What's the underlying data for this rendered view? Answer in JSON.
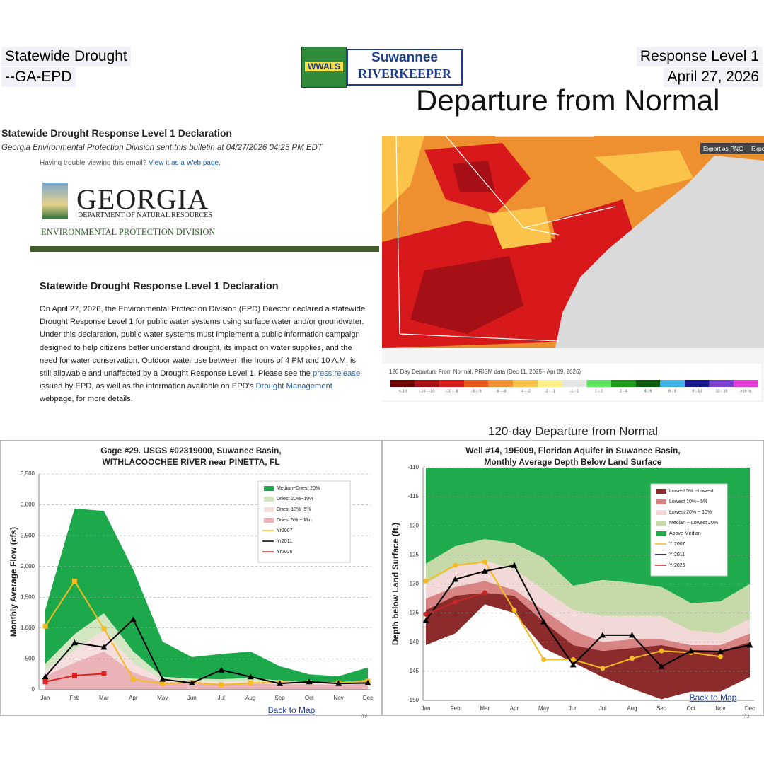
{
  "header": {
    "left": [
      "Statewide Drought",
      "--GA-EPD"
    ],
    "right": [
      "Response Level 1",
      "April 27, 2026"
    ],
    "headline": "Departure from Normal",
    "logo": {
      "badge": "WWALS",
      "name": "Suwannee",
      "sub": "RIVERKEEPER"
    }
  },
  "email": {
    "title": "Statewide Drought Response Level 1 Declaration",
    "sender": "Georgia Environmental Protection Division sent this bulletin at 04/27/2026 04:25 PM EDT",
    "trouble": "Having trouble viewing this email?",
    "web_link": "View it as a Web page.",
    "org": {
      "name": "GEORGIA",
      "dept": "DEPARTMENT OF NATURAL RESOURCES",
      "division": "ENVIRONMENTAL PROTECTION DIVISION"
    },
    "heading": "Statewide Drought Response Level 1 Declaration",
    "body": [
      "On April 27, 2026, the Environmental Protection Division (EPD) Director declared a statewide Drought Response Level 1 for public water systems using surface water and/or groundwater.  Under this declaration, public water systems must implement a public information campaign designed to help citizens better understand drought, its impact on water supplies, and the need for water conservation.  Outdoor water use between the hours of 4 PM and 10 A.M. is still allowable and unaffected by a Drought Response Level 1. Please see the",
      "press release",
      "issued by EPD, as well as the information available on EPD's",
      "Drought Management",
      "webpage, for more details."
    ]
  },
  "map": {
    "buttons": [
      "Export as PNG",
      "Export"
    ],
    "legend_title": "120 Day Departure From Normal, PRISM data (Dec 11, 2025 - Apr 09, 2026)",
    "legend": [
      {
        "label": "<-16",
        "color": "#6e0000"
      },
      {
        "label": "-16 - -10",
        "color": "#a50f15"
      },
      {
        "label": "-10 - -8",
        "color": "#d7191c"
      },
      {
        "label": "-8 - -6",
        "color": "#ea5a1f"
      },
      {
        "label": "-6 - -4",
        "color": "#f39234"
      },
      {
        "label": "-4 - -2",
        "color": "#fbc34a"
      },
      {
        "label": "-2 - -1",
        "color": "#fdf08a"
      },
      {
        "label": "-1 - 1",
        "color": "#e4e4e4"
      },
      {
        "label": "1 - 2",
        "color": "#5ee35e"
      },
      {
        "label": "2 - 4",
        "color": "#1c9a1c"
      },
      {
        "label": "4 - 6",
        "color": "#0c5a0c"
      },
      {
        "label": "6 - 8",
        "color": "#3fb4e4"
      },
      {
        "label": "8 - 10",
        "color": "#15158c"
      },
      {
        "label": "10 - 16",
        "color": "#7b3fd1"
      },
      {
        "label": ">16 in.",
        "color": "#e43fd6"
      }
    ],
    "caption": "120-day Departure from Normal"
  },
  "chart_data": [
    {
      "type": "line",
      "title": "Gage #29. USGS #02319000, Suwanee Basin,",
      "subtitle": "WITHLACOOCHEE RIVER near PINETTA, FL",
      "y_label": "Monthly Average Flow (cfs)",
      "categories": [
        "Jan",
        "Feb",
        "Mar",
        "Apr",
        "May",
        "Jun",
        "Jul",
        "Aug",
        "Sep",
        "Oct",
        "Nov",
        "Dec"
      ],
      "ylim": [
        0,
        3500
      ],
      "yticks": [
        0,
        500,
        {
          "value": 1000,
          "label": "1,000"
        },
        {
          "value": 1500,
          "label": "1,500"
        },
        {
          "value": 2000,
          "label": "2,000"
        },
        {
          "value": 2500,
          "label": "2,500"
        },
        {
          "value": 3000,
          "label": "3,000"
        },
        {
          "value": 3500,
          "label": "3,500"
        }
      ],
      "grid": true,
      "band_edge": "upper",
      "bands": [
        {
          "name": "Median~Driest 20%",
          "color": "#1ea84c",
          "values": [
            1300,
            2940,
            2900,
            1950,
            780,
            530,
            580,
            620,
            380,
            250,
            220,
            360
          ]
        },
        {
          "name": "Driest 20%~10%",
          "color": "#d3e6c2",
          "values": [
            420,
            900,
            1240,
            620,
            210,
            180,
            170,
            190,
            150,
            130,
            120,
            160
          ]
        },
        {
          "name": "Driest 10%~5%",
          "color": "#f5dede",
          "values": [
            320,
            640,
            960,
            430,
            160,
            140,
            130,
            140,
            120,
            110,
            100,
            130
          ]
        },
        {
          "name": "Driest 5% ~ Min",
          "color": "#e9b3b8",
          "values": [
            220,
            440,
            620,
            280,
            120,
            110,
            100,
            110,
            90,
            90,
            80,
            100
          ]
        }
      ],
      "series": [
        {
          "name": "Yr2007",
          "color": "#f4bb22",
          "marker": "square",
          "values": [
            1030,
            1760,
            990,
            170,
            100,
            120,
            80,
            110,
            120,
            120,
            110,
            140
          ]
        },
        {
          "name": "Yr2011",
          "color": "#000000",
          "marker": "triangle",
          "values": [
            210,
            760,
            690,
            1140,
            170,
            110,
            320,
            210,
            100,
            130,
            100,
            110
          ]
        },
        {
          "name": "Yr2026",
          "color": "#e02020",
          "marker": "square",
          "values": [
            130,
            230,
            260,
            null,
            null,
            null,
            null,
            null,
            null,
            null,
            null,
            null
          ]
        }
      ],
      "link": "Back to Map",
      "page": "49"
    },
    {
      "type": "line",
      "title": "Well #14, 19E009, Floridan Aquifer in Suwanee Basin,",
      "subtitle": "Monthly Average Depth Below  Land Surface",
      "y_label": "Depth below Land Surface (ft.)",
      "categories": [
        "Jan",
        "Feb",
        "Mar",
        "Apr",
        "May",
        "Jun",
        "Jul",
        "Aug",
        "Sep",
        "Oct",
        "Nov",
        "Dec"
      ],
      "ylim": [
        -150,
        -110
      ],
      "yticks": [
        -150,
        -145,
        -140,
        -135,
        -130,
        -125,
        -120,
        -115,
        -110
      ],
      "grid": true,
      "band_edge": "lower",
      "bands": [
        {
          "name": "Lowest 5% ~Lowest",
          "color": "#8c2b2b",
          "values": [
            -140.5,
            -138.5,
            -133.5,
            -135,
            -141,
            -143.5,
            -146,
            -148,
            -149.8,
            -148.5,
            -148.5,
            -146
          ]
        },
        {
          "name": "Lowest 10%~ 5%",
          "color": "#d98484",
          "values": [
            -134.5,
            -132,
            -131.5,
            -132,
            -136.5,
            -140.5,
            -141.5,
            -141,
            -140.5,
            -141.5,
            -141.5,
            -140
          ]
        },
        {
          "name": "Lowest 20% ~ 10%",
          "color": "#f3d8d8",
          "values": [
            -132.5,
            -130.5,
            -129.5,
            -131,
            -134.5,
            -138,
            -140,
            -139.5,
            -139.5,
            -140.5,
            -140.5,
            -138.5
          ]
        },
        {
          "name": "Median ~ Lowest 20%",
          "color": "#c6daa9",
          "values": [
            -130,
            -127,
            -126,
            -127.5,
            -131,
            -134.5,
            -135.5,
            -135.5,
            -135.5,
            -138,
            -138.5,
            -136
          ]
        },
        {
          "name": "Above Median",
          "color": "#1faa4b",
          "values": [
            -126.5,
            -123.5,
            -122.3,
            -123,
            -125.5,
            -130.3,
            -129.3,
            -129.8,
            -130.5,
            -133.3,
            -133,
            -130
          ]
        }
      ],
      "series": [
        {
          "name": "Yr2007",
          "color": "#f4bb22",
          "marker": "circle",
          "values": [
            -129.5,
            -126.8,
            -126.2,
            -134.5,
            -143,
            -143,
            -144.5,
            -142.8,
            -141.5,
            -141.8,
            -142.5,
            null
          ]
        },
        {
          "name": "Yr2011",
          "color": "#000000",
          "marker": "triangle",
          "values": [
            -136.3,
            -129.2,
            -127.8,
            -126.8,
            -136.5,
            -143.9,
            -138.8,
            -138.8,
            -144.2,
            -141.5,
            -141.6,
            -140.5
          ]
        },
        {
          "name": "Yr2026",
          "color": "#c62828",
          "marker": "circle",
          "values": [
            -135.2,
            -133.1,
            -131.5,
            null,
            null,
            null,
            null,
            null,
            null,
            null,
            null,
            null
          ]
        }
      ],
      "link": "Back to Map",
      "page": "73"
    }
  ]
}
